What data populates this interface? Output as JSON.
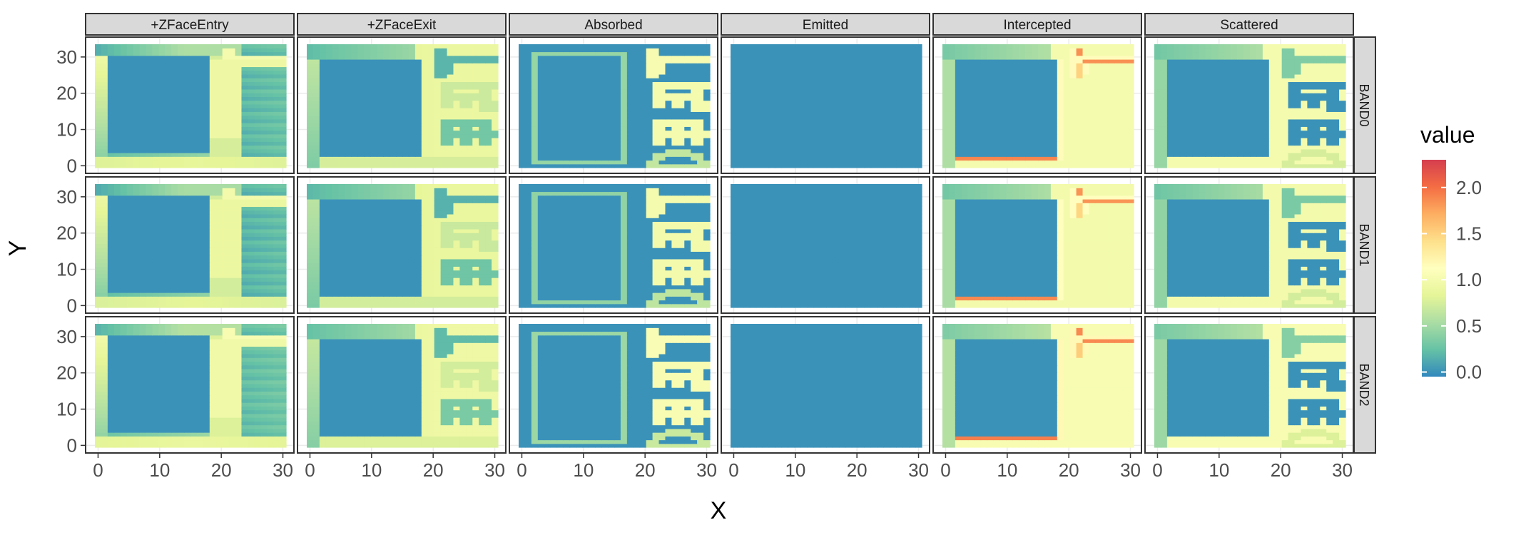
{
  "chart_data": {
    "type": "heatmap",
    "description": "Faceted raster maps: columns = measure, rows = spectral band",
    "col_facets": [
      "+ZFaceEntry",
      "+ZFaceExit",
      "Absorbed",
      "Emitted",
      "Intercepted",
      "Scattered"
    ],
    "row_facets": [
      "BAND0",
      "BAND1",
      "BAND2"
    ],
    "xlabel": "X",
    "ylabel": "Y",
    "x_ticks": [
      "0",
      "10",
      "20",
      "30"
    ],
    "y_ticks": [
      "0",
      "10",
      "20",
      "30"
    ],
    "xlim": [
      0,
      30
    ],
    "ylim": [
      0,
      33
    ],
    "grid": true,
    "legend": {
      "title": "value",
      "position": "right",
      "ticks": [
        "0.0",
        "0.5",
        "1.0",
        "1.5",
        "2.0"
      ],
      "tick_values": [
        0,
        0.5,
        1.0,
        1.5,
        2.0
      ],
      "range": [
        -0.05,
        2.3
      ],
      "colormap": "Spectral (reversed)"
    },
    "grid_size": [
      30,
      33
    ],
    "panel_patterns": {
      "+ZFaceEntry": "low box 2-17 x 4-29; high vertical strip 18-22 x 8-32; sloped gradient upper-left",
      "+ZFaceExit": "low box 2-17 x 3-28; faint 'T','A','R' letters at x 21-29",
      "Absorbed": "background 0; hollow square outline ~0.5; letters D A R T at x 20-29 ~1.0",
      "Emitted": "uniform 0",
      "Intercepted": "background ~1.0; low box 2-17 x 2-28; hot segment ~1.9 on T crossbar and box bottom",
      "Scattered": "background ~1.0; low box 2-17 x 3-28; letters D A R T at x 20-29 low"
    }
  },
  "palette": {
    "strip_bg": "#d9d9d9",
    "strip_border": "#333333",
    "panel_border": "#333333",
    "grid": "#ebebeb",
    "colors": [
      "#3288bd",
      "#66c2a5",
      "#abdda4",
      "#e6f598",
      "#ffffbf",
      "#fee08b",
      "#fdae61",
      "#f46d43",
      "#d53e4f"
    ]
  }
}
